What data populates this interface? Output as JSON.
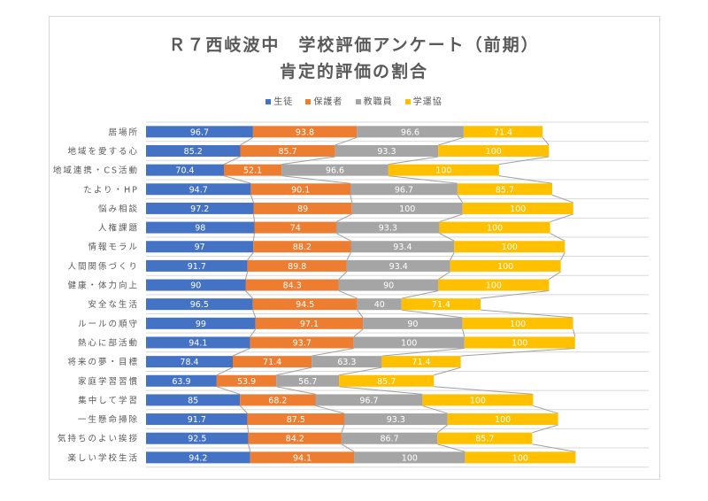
{
  "chart_data": {
    "type": "bar",
    "orientation": "horizontal",
    "stacked": true,
    "title": "Ｒ７西岐波中　学校評価アンケート（前期）",
    "subtitle": "肯定的評価の割合",
    "xlabel": "",
    "ylabel": "",
    "legend_position": "top",
    "grid": "horizontal category separators",
    "series_lines": true,
    "categories": [
      "居場所",
      "地域を愛する心",
      "地域連携・CS活動",
      "たより・HP",
      "悩み相談",
      "人権課題",
      "情報モラル",
      "人間関係づくり",
      "健康・体力向上",
      "安全な生活",
      "ルールの順守",
      "熱心に部活動",
      "将来の夢・目標",
      "家庭学習習慣",
      "集中して学習",
      "一生懸命掃除",
      "気持ちのよい挨拶",
      "楽しい学校生活"
    ],
    "series": [
      {
        "name": "生徒",
        "color": "#4472C4",
        "values": [
          96.7,
          85.2,
          70.4,
          94.7,
          97.2,
          98,
          97,
          91.7,
          90,
          96.5,
          99,
          94.1,
          78.4,
          63.9,
          85,
          91.7,
          92.5,
          94.2
        ]
      },
      {
        "name": "保護者",
        "color": "#ED7D31",
        "values": [
          93.8,
          85.7,
          52.1,
          90.1,
          89,
          74,
          88.2,
          89.8,
          84.3,
          94.5,
          97.1,
          93.7,
          71.4,
          53.9,
          68.2,
          87.5,
          84.2,
          94.1
        ]
      },
      {
        "name": "教職員",
        "color": "#A5A5A5",
        "values": [
          96.6,
          93.3,
          96.6,
          96.7,
          100,
          93.3,
          93.4,
          93.4,
          90,
          40,
          90,
          100,
          63.3,
          56.7,
          96.7,
          93.3,
          86.7,
          100
        ]
      },
      {
        "name": "学運協",
        "color": "#FFC000",
        "values": [
          71.4,
          100,
          100,
          85.7,
          100,
          100,
          100,
          100,
          100,
          71.4,
          100,
          100,
          71.4,
          85.7,
          100,
          100,
          85.7,
          100
        ]
      }
    ],
    "xlim": [
      0,
      450
    ]
  },
  "colors": {
    "text": "#595959",
    "grid": "#D9D9D9",
    "series_line": "#A0A0A0",
    "bar_label": "#FFFFFF"
  }
}
